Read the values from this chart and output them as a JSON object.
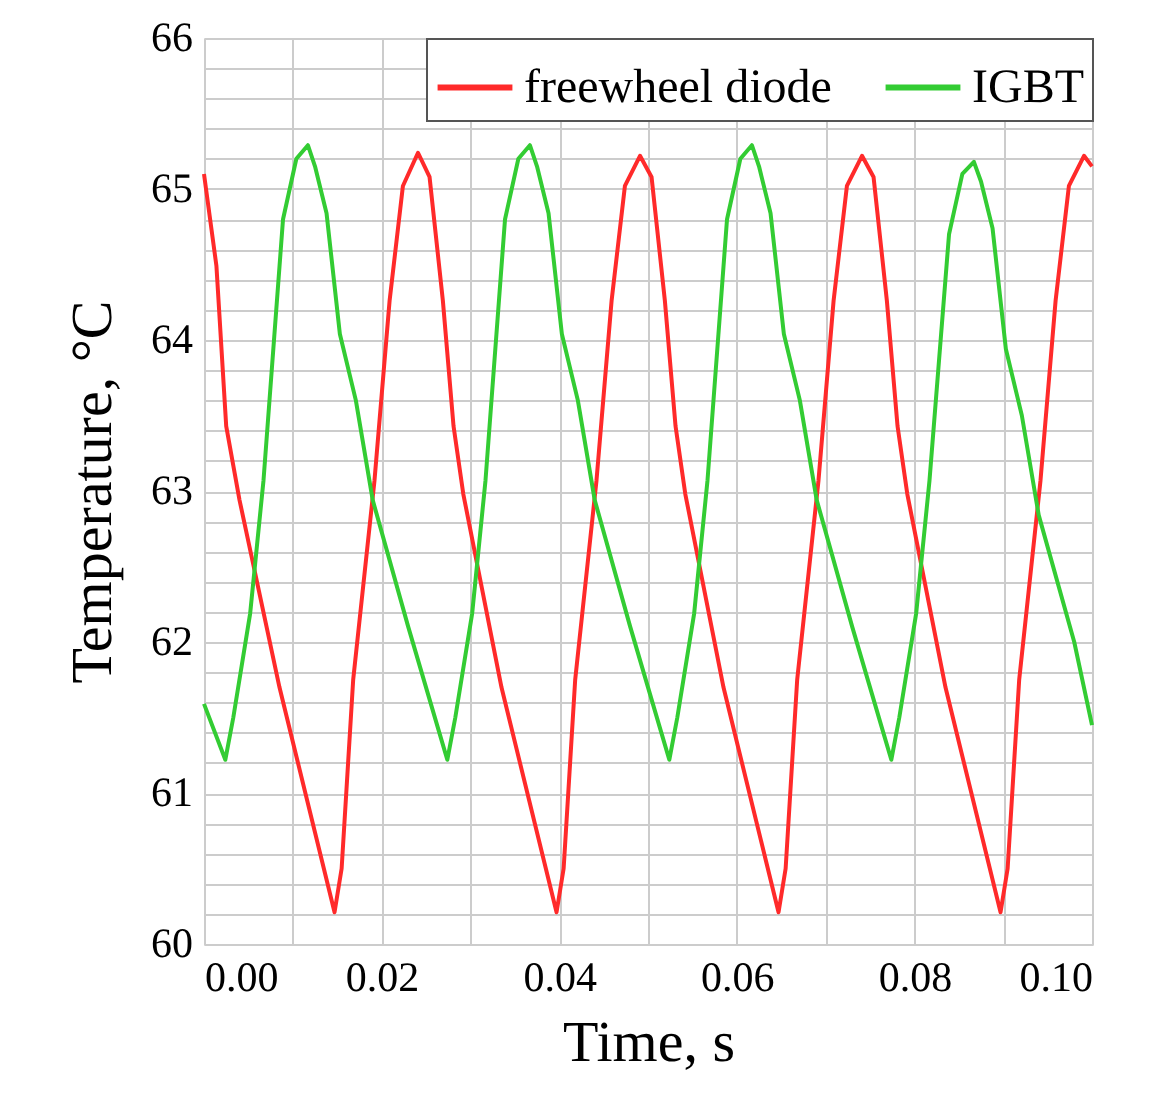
{
  "chart_data": {
    "type": "line",
    "xlabel": "Time, s",
    "ylabel": "Temperature, °C",
    "xlim": [
      0,
      0.1
    ],
    "ylim": [
      60,
      66
    ],
    "xticks": [
      {
        "value": 0,
        "label": "0.00"
      },
      {
        "value": 0.01,
        "label": null
      },
      {
        "value": 0.02,
        "label": "0.02"
      },
      {
        "value": 0.03,
        "label": null
      },
      {
        "value": 0.04,
        "label": "0.04"
      },
      {
        "value": 0.05,
        "label": null
      },
      {
        "value": 0.06,
        "label": "0.06"
      },
      {
        "value": 0.07,
        "label": null
      },
      {
        "value": 0.08,
        "label": "0.08"
      },
      {
        "value": 0.09,
        "label": null
      },
      {
        "value": 0.1,
        "label": "0.10"
      }
    ],
    "yticks": [
      60,
      {
        "value": 60.2,
        "label": null
      },
      {
        "value": 60.4,
        "label": null
      },
      {
        "value": 60.6,
        "label": null
      },
      {
        "value": 60.8,
        "label": null
      },
      61,
      {
        "value": 61.2,
        "label": null
      },
      {
        "value": 61.4,
        "label": null
      },
      {
        "value": 61.6,
        "label": null
      },
      {
        "value": 61.8,
        "label": null
      },
      62,
      {
        "value": 62.2,
        "label": null
      },
      {
        "value": 62.4,
        "label": null
      },
      {
        "value": 62.6,
        "label": null
      },
      {
        "value": 62.8,
        "label": null
      },
      63,
      {
        "value": 63.2,
        "label": null
      },
      {
        "value": 63.4,
        "label": null
      },
      {
        "value": 63.6,
        "label": null
      },
      {
        "value": 63.8,
        "label": null
      },
      64,
      {
        "value": 64.2,
        "label": null
      },
      {
        "value": 64.4,
        "label": null
      },
      {
        "value": 64.6,
        "label": null
      },
      {
        "value": 64.8,
        "label": null
      },
      65,
      {
        "value": 65.2,
        "label": null
      },
      {
        "value": 65.4,
        "label": null
      },
      {
        "value": 65.6,
        "label": null
      },
      {
        "value": 65.8,
        "label": null
      },
      66
    ],
    "grid": true,
    "legend": "top right",
    "line_style": "solid",
    "series": [
      {
        "name": "freewheel diode",
        "color": "#ff2a2a",
        "x": [
          0,
          0.0014,
          0.0025,
          0.004,
          0.0085,
          0.0147,
          0.0155,
          0.0168,
          0.0192,
          0.0209,
          0.0224,
          0.0241,
          0.0254,
          0.0269,
          0.0281,
          0.0292,
          0.0335,
          0.0397,
          0.0405,
          0.0418,
          0.0442,
          0.0459,
          0.0474,
          0.0491,
          0.0504,
          0.0519,
          0.0531,
          0.0542,
          0.0585,
          0.0647,
          0.0655,
          0.0668,
          0.0692,
          0.0709,
          0.0724,
          0.0741,
          0.0754,
          0.0769,
          0.0781,
          0.0792,
          0.0835,
          0.0897,
          0.0905,
          0.0918,
          0.0942,
          0.0959,
          0.0974,
          0.0991,
          0.1
        ],
        "values": [
          65.1,
          64.49,
          63.43,
          62.94,
          61.7,
          60.21,
          60.5,
          61.75,
          63.07,
          64.26,
          65.02,
          65.24,
          65.08,
          64.26,
          63.43,
          62.98,
          61.7,
          60.21,
          60.5,
          61.75,
          63.07,
          64.26,
          65.02,
          65.22,
          65.08,
          64.26,
          63.43,
          62.98,
          61.7,
          60.21,
          60.5,
          61.75,
          63.07,
          64.26,
          65.02,
          65.22,
          65.08,
          64.26,
          63.43,
          62.98,
          61.7,
          60.21,
          60.5,
          61.75,
          63.07,
          64.26,
          65.02,
          65.22,
          65.15
        ]
      },
      {
        "name": "IGBT",
        "color": "#33cc33",
        "x": [
          0,
          0.0024,
          0.0033,
          0.0052,
          0.0067,
          0.0089,
          0.0104,
          0.0117,
          0.0125,
          0.0138,
          0.0153,
          0.0171,
          0.019,
          0.023,
          0.0265,
          0.0274,
          0.0283,
          0.0302,
          0.0317,
          0.0339,
          0.0354,
          0.0367,
          0.0375,
          0.0388,
          0.0403,
          0.0421,
          0.044,
          0.048,
          0.0515,
          0.0524,
          0.0533,
          0.0552,
          0.0567,
          0.0589,
          0.0604,
          0.0617,
          0.0625,
          0.0638,
          0.0653,
          0.0671,
          0.069,
          0.073,
          0.0765,
          0.0774,
          0.0783,
          0.0802,
          0.0817,
          0.0839,
          0.0854,
          0.0867,
          0.0875,
          0.0888,
          0.0903,
          0.0921,
          0.094,
          0.098,
          0.1
        ],
        "values": [
          61.59,
          61.22,
          61.5,
          62.19,
          63.07,
          64.8,
          65.2,
          65.29,
          65.15,
          64.84,
          64.04,
          63.6,
          62.94,
          62.1,
          61.4,
          61.22,
          61.5,
          62.19,
          63.07,
          64.8,
          65.2,
          65.29,
          65.15,
          64.84,
          64.04,
          63.6,
          62.94,
          62.1,
          61.4,
          61.22,
          61.5,
          62.19,
          63.07,
          64.8,
          65.2,
          65.29,
          65.15,
          64.84,
          64.04,
          63.6,
          62.94,
          62.1,
          61.4,
          61.22,
          61.5,
          62.19,
          63.07,
          64.7,
          65.1,
          65.18,
          65.05,
          64.74,
          63.94,
          63.5,
          62.84,
          62.0,
          61.45
        ]
      }
    ]
  }
}
